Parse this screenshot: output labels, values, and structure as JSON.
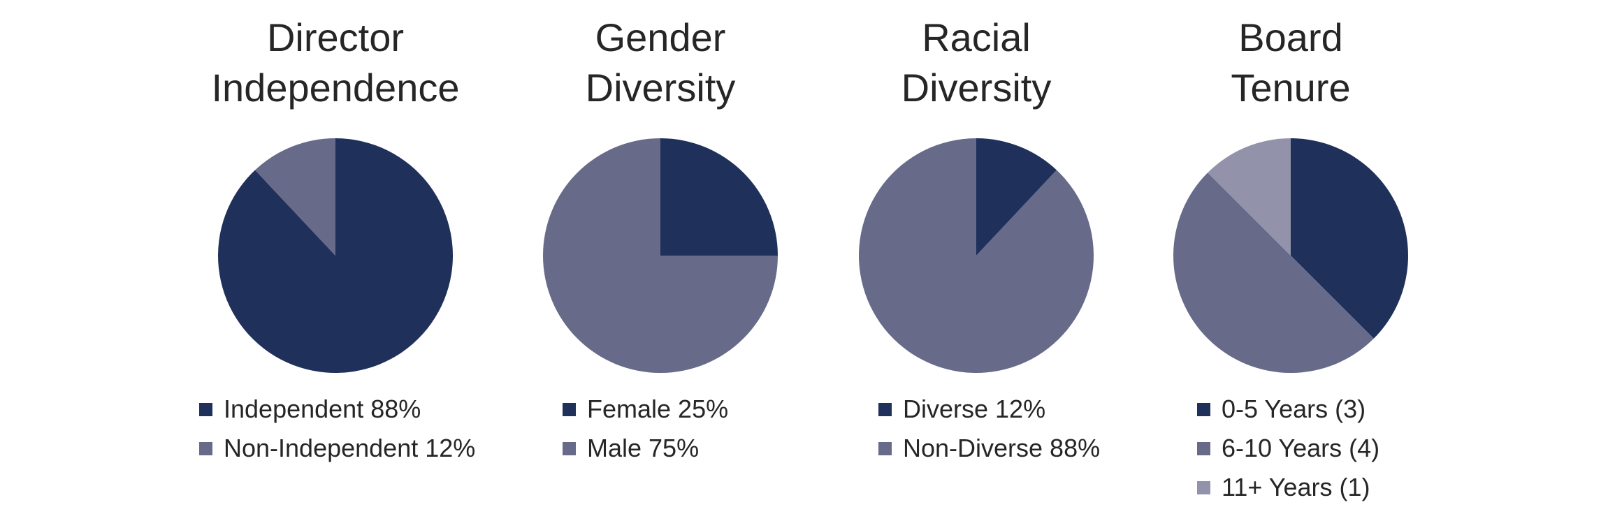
{
  "colors": {
    "navy": "#1f305a",
    "slate": "#676a89",
    "lavender": "#9293aa"
  },
  "chart_data": [
    {
      "type": "pie",
      "title_lines": [
        "Director",
        "Independence"
      ],
      "slices": [
        {
          "label": "Independent 88%",
          "value": 88,
          "color": "#1f305a"
        },
        {
          "label": "Non-Independent 12%",
          "value": 12,
          "color": "#676a89"
        }
      ],
      "legend_position": "bottom"
    },
    {
      "type": "pie",
      "title_lines": [
        "Gender",
        "Diversity"
      ],
      "slices": [
        {
          "label": "Female 25%",
          "value": 25,
          "color": "#1f305a"
        },
        {
          "label": "Male 75%",
          "value": 75,
          "color": "#676a89"
        }
      ],
      "legend_position": "bottom"
    },
    {
      "type": "pie",
      "title_lines": [
        "Racial",
        "Diversity"
      ],
      "slices": [
        {
          "label": "Diverse 12%",
          "value": 12,
          "color": "#1f305a"
        },
        {
          "label": "Non-Diverse 88%",
          "value": 88,
          "color": "#676a89"
        }
      ],
      "legend_position": "bottom"
    },
    {
      "type": "pie",
      "title_lines": [
        "Board",
        "Tenure"
      ],
      "slices": [
        {
          "label": "0-5 Years (3)",
          "value": 3,
          "color": "#1f305a"
        },
        {
          "label": "6-10 Years (4)",
          "value": 4,
          "color": "#676a89"
        },
        {
          "label": "11+ Years (1)",
          "value": 1,
          "color": "#9293aa"
        }
      ],
      "legend_position": "bottom"
    }
  ]
}
